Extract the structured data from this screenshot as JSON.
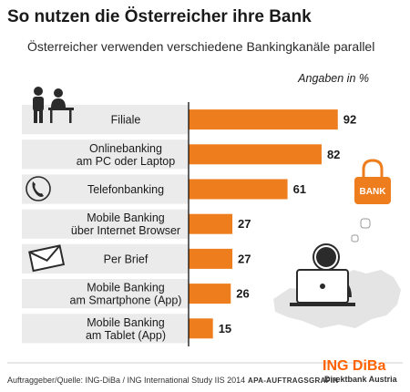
{
  "header": {
    "title": "So nutzen die Österreicher ihre Bank",
    "subtitle": "Österreicher verwenden verschiedene Bankingkanäle parallel",
    "unit": "Angaben in %"
  },
  "footer": {
    "source": "Auftraggeber/Quelle: ING-DiBa / ING International Study IIS 2014",
    "credit": "APA-AUFTRAGSGRAFIK",
    "brand_name": "ING DiBa",
    "brand_tagline": "Direktbank Austria"
  },
  "illustration": {
    "badge_text": "BANK",
    "icons": [
      "people-icon",
      "phone-icon",
      "envelope-icon",
      "lock-bank-icon",
      "person-laptop-icon",
      "austria-map"
    ]
  },
  "colors": {
    "bar": "#ee7d1d",
    "band": "#ebebeb",
    "brand_orange": "#ff6200",
    "axis": "#111111"
  },
  "chart_data": {
    "type": "bar",
    "orientation": "horizontal",
    "title": "So nutzen die Österreicher ihre Bank",
    "subtitle": "Österreicher verwenden verschiedene Bankingkanäle parallel",
    "unit": "Angaben in %",
    "categories": [
      [
        "Filiale"
      ],
      [
        "Onlinebanking",
        "am PC oder Laptop"
      ],
      [
        "Telefonbanking"
      ],
      [
        "Mobile Banking",
        "über Internet Browser"
      ],
      [
        "Per Brief"
      ],
      [
        "Mobile Banking",
        "am Smartphone (App)"
      ],
      [
        "Mobile Banking",
        "am Tablet (App)"
      ]
    ],
    "values": [
      92,
      82,
      61,
      27,
      27,
      26,
      15
    ],
    "xlim": [
      0,
      100
    ],
    "grid": false,
    "legend": "none"
  }
}
